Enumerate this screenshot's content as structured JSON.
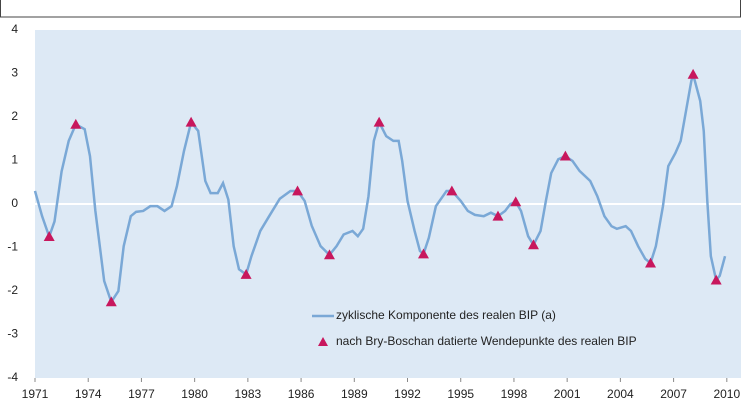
{
  "chart_data": {
    "type": "line",
    "series": [
      {
        "name": "zyklische Komponente des realen BIP (a)",
        "color": "#7aa8d6",
        "kind": "line",
        "x": [
          1971.0,
          1971.4,
          1971.8,
          1972.1,
          1972.5,
          1972.9,
          1973.3,
          1973.8,
          1974.1,
          1974.4,
          1974.9,
          1975.3,
          1975.7,
          1976.0,
          1976.4,
          1976.7,
          1977.1,
          1977.5,
          1977.9,
          1978.3,
          1978.7,
          1979.0,
          1979.4,
          1979.8,
          1980.2,
          1980.6,
          1980.9,
          1981.3,
          1981.6,
          1981.9,
          1982.2,
          1982.5,
          1982.9,
          1983.2,
          1983.7,
          1984.2,
          1984.8,
          1985.4,
          1985.8,
          1986.2,
          1986.6,
          1987.1,
          1987.6,
          1988.0,
          1988.4,
          1988.9,
          1989.2,
          1989.5,
          1989.8,
          1990.1,
          1990.4,
          1990.8,
          1991.2,
          1991.5,
          1991.7,
          1992.0,
          1992.4,
          1992.7,
          1992.9,
          1993.2,
          1993.6,
          1994.2,
          1994.5,
          1995.0,
          1995.4,
          1995.8,
          1996.3,
          1996.7,
          1997.1,
          1997.5,
          1997.8,
          1998.1,
          1998.4,
          1998.8,
          1999.1,
          1999.5,
          1999.8,
          2000.1,
          2000.5,
          2000.9,
          2001.3,
          2001.7,
          2002.3,
          2002.7,
          2003.1,
          2003.5,
          2003.8,
          2004.3,
          2004.6,
          2005.0,
          2005.4,
          2005.7,
          2006.0,
          2006.4,
          2006.7,
          2007.1,
          2007.4,
          2007.7,
          2008.0,
          2008.1,
          2008.5,
          2008.7,
          2008.9,
          2009.1,
          2009.4,
          2009.6,
          2009.9
        ],
        "values": [
          0.3,
          -0.28,
          -0.75,
          -0.4,
          0.75,
          1.45,
          1.83,
          1.72,
          1.1,
          -0.15,
          -1.77,
          -2.25,
          -2.0,
          -0.97,
          -0.28,
          -0.18,
          -0.16,
          -0.05,
          -0.05,
          -0.16,
          -0.05,
          0.41,
          1.22,
          1.88,
          1.68,
          0.53,
          0.25,
          0.25,
          0.48,
          0.1,
          -0.97,
          -1.5,
          -1.62,
          -1.2,
          -0.62,
          -0.28,
          0.12,
          0.3,
          0.3,
          0.07,
          -0.5,
          -0.97,
          -1.17,
          -0.97,
          -0.7,
          -0.62,
          -0.74,
          -0.57,
          0.18,
          1.45,
          1.88,
          1.56,
          1.45,
          1.45,
          0.99,
          0.07,
          -0.62,
          -1.08,
          -1.15,
          -0.78,
          -0.05,
          0.3,
          0.3,
          0.07,
          -0.16,
          -0.25,
          -0.28,
          -0.2,
          -0.28,
          -0.16,
          0,
          0.05,
          -0.16,
          -0.74,
          -0.94,
          -0.62,
          0.07,
          0.71,
          1.03,
          1.1,
          0.99,
          0.76,
          0.53,
          0.18,
          -0.28,
          -0.51,
          -0.57,
          -0.51,
          -0.62,
          -0.97,
          -1.26,
          -1.36,
          -0.97,
          -0.05,
          0.87,
          1.17,
          1.45,
          2.14,
          2.83,
          2.98,
          2.37,
          1.68,
          0.07,
          -1.2,
          -1.75,
          -1.65,
          -1.2
        ]
      },
      {
        "name": "nach Bry-Boschan datierte Wendepunkte des realen BIP",
        "color": "#c8175d",
        "kind": "marker",
        "x": [
          1971.8,
          1973.3,
          1975.3,
          1979.8,
          1982.9,
          1985.8,
          1987.6,
          1990.4,
          1992.9,
          1994.5,
          1997.1,
          1998.1,
          1999.1,
          2000.9,
          2005.7,
          2008.1,
          2009.4
        ],
        "values": [
          -0.75,
          1.83,
          -2.25,
          1.88,
          -1.62,
          0.3,
          -1.17,
          1.88,
          -1.15,
          0.3,
          -0.28,
          0.05,
          -0.94,
          1.1,
          -1.36,
          2.98,
          -1.75
        ]
      }
    ],
    "xlim": [
      1971,
      2010.8
    ],
    "xticks": [
      1971,
      1974,
      1977,
      1980,
      1983,
      1986,
      1989,
      1992,
      1995,
      1998,
      2001,
      2004,
      2007,
      2010
    ],
    "ylim": [
      -4,
      4
    ],
    "yticks": [
      -4,
      -3,
      -2,
      -1,
      0,
      1,
      2,
      3,
      4
    ],
    "legend": "lower right",
    "background": "#dde9f5"
  }
}
